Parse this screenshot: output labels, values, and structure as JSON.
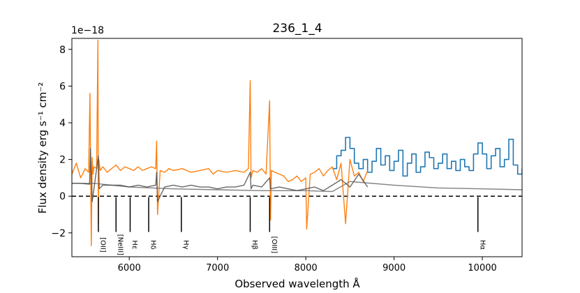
{
  "chart_data": {
    "type": "line",
    "title": "236_1_4",
    "xlabel": "Observed wavelength Å",
    "ylabel": "Flux density erg s⁻¹ cm⁻²",
    "y_multiplier": "1e−18",
    "xlim": [
      5350,
      10450
    ],
    "ylim": [
      -3.3,
      8.6
    ],
    "xticks": [
      6000,
      7000,
      8000,
      9000,
      10000
    ],
    "yticks": [
      -2,
      0,
      2,
      4,
      6,
      8
    ],
    "grid": false,
    "legend": "none",
    "colors": {
      "spectrum": "#ff7f0e",
      "binned": "#1f77b4",
      "model": "#4d4d4d",
      "error": "#808080",
      "zero_line": "#000000",
      "line_marker": "#000000"
    },
    "series": [
      {
        "style": "line",
        "color": "#ff7f0e",
        "x": [
          5350,
          5400,
          5450,
          5500,
          5540,
          5555,
          5570,
          5580,
          5590,
          5600,
          5630,
          5645,
          5650,
          5655,
          5670,
          5700,
          5750,
          5800,
          5850,
          5900,
          5950,
          6000,
          6050,
          6100,
          6150,
          6200,
          6250,
          6300,
          6310,
          6320,
          6350,
          6400,
          6450,
          6500,
          6600,
          6700,
          6800,
          6900,
          6950,
          7000,
          7100,
          7200,
          7300,
          7350,
          7370,
          7380,
          7400,
          7450,
          7500,
          7550,
          7590,
          7600,
          7610,
          7650,
          7700,
          7750,
          7800,
          7850,
          7900,
          7950,
          8000,
          8010,
          8050,
          8100,
          8150,
          8200,
          8250,
          8300,
          8350,
          8400,
          8450,
          8500,
          8550,
          8600,
          8650,
          8700
        ],
        "y": [
          1.2,
          1.8,
          1.0,
          1.5,
          1.3,
          5.6,
          -2.7,
          2.1,
          1.2,
          1.6,
          1.5,
          8.5,
          -1.5,
          2.0,
          1.4,
          1.6,
          1.3,
          1.5,
          1.7,
          1.4,
          1.6,
          1.5,
          1.4,
          1.6,
          1.4,
          1.5,
          1.6,
          1.5,
          3.0,
          -1.0,
          1.4,
          1.3,
          1.5,
          1.4,
          1.5,
          1.3,
          1.4,
          1.5,
          1.2,
          1.4,
          1.3,
          1.4,
          1.3,
          1.5,
          6.3,
          1.0,
          1.4,
          1.3,
          1.5,
          1.2,
          5.2,
          -1.3,
          1.4,
          1.3,
          1.2,
          1.1,
          0.8,
          0.9,
          1.1,
          0.8,
          1.0,
          -1.8,
          1.2,
          1.3,
          1.5,
          1.1,
          1.4,
          1.6,
          0.9,
          1.8,
          -1.5,
          2.0,
          1.1,
          1.3,
          0.8,
          1.4
        ]
      },
      {
        "style": "step",
        "color": "#1f77b4",
        "x": [
          8300,
          8350,
          8400,
          8450,
          8500,
          8550,
          8600,
          8650,
          8700,
          8750,
          8800,
          8850,
          8900,
          8950,
          9000,
          9050,
          9100,
          9150,
          9200,
          9250,
          9300,
          9350,
          9400,
          9450,
          9500,
          9550,
          9600,
          9650,
          9700,
          9750,
          9800,
          9850,
          9900,
          9950,
          10000,
          10050,
          10100,
          10150,
          10200,
          10250,
          10300,
          10350,
          10400,
          10450
        ],
        "y": [
          1.5,
          2.2,
          2.5,
          3.2,
          2.6,
          1.8,
          1.5,
          2.0,
          1.3,
          1.9,
          2.6,
          1.7,
          2.2,
          1.4,
          1.9,
          2.5,
          1.1,
          1.8,
          2.3,
          1.3,
          1.6,
          2.4,
          2.1,
          1.5,
          1.8,
          2.3,
          1.5,
          1.9,
          1.4,
          2.0,
          1.6,
          1.4,
          2.3,
          2.9,
          2.3,
          1.5,
          2.2,
          2.6,
          1.6,
          2.0,
          3.1,
          1.7,
          1.2,
          1.5
        ]
      },
      {
        "style": "line",
        "color": "#4d4d4d",
        "x": [
          5350,
          5450,
          5550,
          5560,
          5580,
          5650,
          5660,
          5700,
          5800,
          5900,
          6000,
          6100,
          6200,
          6300,
          6310,
          6320,
          6400,
          6500,
          6600,
          6700,
          6800,
          6900,
          7000,
          7100,
          7200,
          7300,
          7370,
          7380,
          7400,
          7500,
          7590,
          7600,
          7700,
          7800,
          7900,
          8000,
          8100,
          8200,
          8300,
          8400,
          8500,
          8600,
          8700
        ],
        "y": [
          0.7,
          0.7,
          0.65,
          2.6,
          -0.3,
          2.2,
          0.4,
          0.6,
          0.6,
          0.6,
          0.5,
          0.6,
          0.5,
          0.6,
          1.3,
          -0.3,
          0.5,
          0.6,
          0.5,
          0.6,
          0.5,
          0.5,
          0.4,
          0.5,
          0.5,
          0.6,
          1.3,
          0.4,
          0.6,
          0.5,
          1.0,
          0.4,
          0.5,
          0.4,
          0.3,
          0.4,
          0.5,
          0.3,
          0.6,
          0.9,
          0.5,
          1.2,
          0.5
        ]
      },
      {
        "style": "line",
        "color": "#808080",
        "x": [
          5350,
          5600,
          6000,
          6500,
          7000,
          7500,
          8000,
          8300,
          8500,
          9000,
          9500,
          10000,
          10450
        ],
        "y": [
          0.7,
          0.7,
          0.5,
          0.4,
          0.35,
          0.3,
          0.3,
          0.25,
          0.8,
          0.6,
          0.45,
          0.4,
          0.35
        ]
      }
    ],
    "emission_lines": [
      {
        "label": "[OII]",
        "x": 5650
      },
      {
        "label": "[NeIII]",
        "x": 5850
      },
      {
        "label": "Hε",
        "x": 6010
      },
      {
        "label": "Hδ",
        "x": 6220
      },
      {
        "label": "Hγ",
        "x": 6590
      },
      {
        "label": "Hβ",
        "x": 7370
      },
      {
        "label": "[OIII]",
        "x": 7590
      },
      {
        "label": "Hα",
        "x": 9950
      }
    ]
  }
}
